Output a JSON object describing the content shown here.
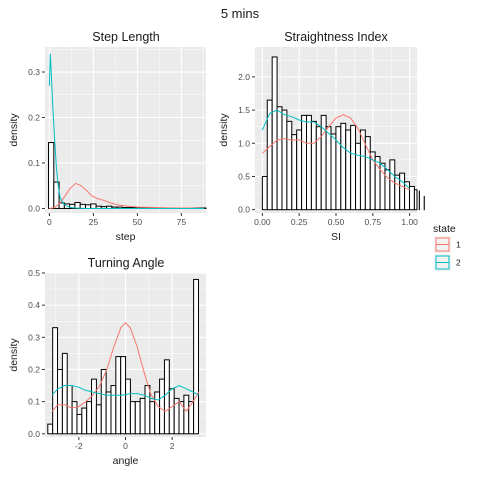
{
  "figure": {
    "title": "5 mins"
  },
  "legend": {
    "title": "state",
    "position": "right",
    "entries": [
      {
        "label": "1",
        "color": "#F8766D"
      },
      {
        "label": "2",
        "color": "#00BFC4"
      }
    ]
  },
  "chart_data": [
    {
      "type": "histogram-density",
      "title": "Step Length",
      "xlabel": "step",
      "ylabel": "density",
      "xlim": [
        -2.5,
        89
      ],
      "ylim": [
        -0.01,
        0.355
      ],
      "xticks": [
        0,
        25,
        50,
        75
      ],
      "yticks": [
        0.0,
        0.1,
        0.2,
        0.3
      ],
      "grid": true,
      "hist": {
        "start": -0.5,
        "width": 3,
        "values": [
          0.145,
          0.058,
          0.012,
          0.01,
          0.009,
          0.013,
          0.009,
          0.008,
          0.01,
          0.005,
          0.004,
          0.005,
          0.003,
          0.003,
          0.002,
          0.002,
          0.002,
          0.002,
          0.001,
          0.001,
          0.001,
          0.001,
          0.001,
          0.001,
          0.001,
          0.001,
          0.001,
          0.001,
          0.001,
          0.001
        ]
      },
      "series": [
        {
          "name": "1",
          "color": "#F8766D",
          "x": [
            0,
            3,
            6,
            9,
            12,
            15,
            18,
            21,
            24,
            27,
            30,
            35,
            40,
            50,
            60,
            70,
            80,
            88
          ],
          "y": [
            0.0,
            0.002,
            0.012,
            0.028,
            0.045,
            0.055,
            0.05,
            0.04,
            0.028,
            0.022,
            0.019,
            0.012,
            0.007,
            0.003,
            0.002,
            0.001,
            0.001,
            0.0
          ]
        },
        {
          "name": "2",
          "color": "#00BFC4",
          "x": [
            0,
            0.5,
            1,
            2,
            3,
            4,
            5,
            6,
            8,
            10,
            12,
            15,
            20,
            30,
            50,
            88
          ],
          "y": [
            0.27,
            0.34,
            0.3,
            0.22,
            0.15,
            0.09,
            0.05,
            0.025,
            0.01,
            0.005,
            0.002,
            0.001,
            0.0,
            0.0,
            0.0,
            0.0
          ]
        }
      ]
    },
    {
      "type": "histogram-density",
      "title": "Straightness Index",
      "xlabel": "SI",
      "ylabel": "density",
      "xlim": [
        -0.05,
        1.05
      ],
      "ylim": [
        -0.05,
        2.45
      ],
      "xticks": [
        0.0,
        0.25,
        0.5,
        0.75,
        1.0
      ],
      "xtick_labels": [
        "0.00",
        "0.25",
        "0.50",
        "0.75",
        "1.00"
      ],
      "yticks": [
        0.0,
        0.5,
        1.0,
        1.5,
        2.0
      ],
      "grid": true,
      "hist": {
        "start": 0.0,
        "width": 0.0333,
        "values": [
          0.5,
          1.65,
          2.3,
          1.55,
          1.5,
          1.33,
          1.13,
          1.2,
          1.42,
          1.42,
          1.33,
          1.25,
          1.42,
          1.25,
          1.14,
          1.25,
          1.3,
          1.2,
          1.27,
          1.0,
          1.2,
          1.1,
          0.87,
          0.8,
          0.7,
          0.6,
          0.75,
          0.52,
          0.55,
          0.42,
          0.35,
          0.3,
          0.28,
          0.2
        ]
      },
      "series": [
        {
          "name": "1",
          "color": "#F8766D",
          "x": [
            0.0,
            0.05,
            0.1,
            0.15,
            0.2,
            0.25,
            0.3,
            0.35,
            0.4,
            0.45,
            0.5,
            0.55,
            0.6,
            0.65,
            0.7,
            0.75,
            0.8,
            0.85,
            0.9,
            0.95,
            1.0
          ],
          "y": [
            0.85,
            0.95,
            1.05,
            1.07,
            1.05,
            1.05,
            1.0,
            1.0,
            1.1,
            1.25,
            1.38,
            1.43,
            1.38,
            1.22,
            0.98,
            0.75,
            0.6,
            0.48,
            0.4,
            0.35,
            0.3
          ]
        },
        {
          "name": "2",
          "color": "#00BFC4",
          "x": [
            0.0,
            0.05,
            0.1,
            0.15,
            0.2,
            0.25,
            0.3,
            0.35,
            0.4,
            0.45,
            0.5,
            0.55,
            0.6,
            0.65,
            0.7,
            0.75,
            0.8,
            0.85,
            0.9,
            0.95,
            1.0
          ],
          "y": [
            1.2,
            1.45,
            1.5,
            1.43,
            1.4,
            1.35,
            1.32,
            1.32,
            1.25,
            1.15,
            1.05,
            0.93,
            0.85,
            0.82,
            0.8,
            0.75,
            0.7,
            0.6,
            0.5,
            0.42,
            0.32
          ]
        }
      ]
    },
    {
      "type": "histogram-density",
      "title": "Turning Angle",
      "xlabel": "angle",
      "ylabel": "density",
      "xlim": [
        -3.45,
        3.45
      ],
      "ylim": [
        -0.01,
        0.5
      ],
      "xticks": [
        -2,
        0,
        2
      ],
      "yticks": [
        0.0,
        0.1,
        0.2,
        0.3,
        0.4,
        0.5
      ],
      "grid": true,
      "hist": {
        "start": -3.33,
        "width": 0.2083,
        "values": [
          0.03,
          0.33,
          0.2,
          0.25,
          0.15,
          0.1,
          0.06,
          0.08,
          0.1,
          0.17,
          0.09,
          0.2,
          0.13,
          0.15,
          0.24,
          0.24,
          0.17,
          0.1,
          0.1,
          0.11,
          0.15,
          0.1,
          0.13,
          0.17,
          0.23,
          0.14,
          0.11,
          0.1,
          0.12,
          0.1,
          0.48
        ]
      },
      "series": [
        {
          "name": "1",
          "color": "#F8766D",
          "x": [
            -3.14,
            -2.9,
            -2.6,
            -2.3,
            -2.0,
            -1.7,
            -1.4,
            -1.1,
            -0.8,
            -0.5,
            -0.2,
            0.0,
            0.2,
            0.5,
            0.8,
            1.1,
            1.4,
            1.7,
            2.0,
            2.3,
            2.6,
            2.9,
            3.14
          ],
          "y": [
            0.07,
            0.09,
            0.09,
            0.08,
            0.085,
            0.1,
            0.12,
            0.15,
            0.2,
            0.27,
            0.33,
            0.345,
            0.33,
            0.27,
            0.19,
            0.12,
            0.085,
            0.07,
            0.085,
            0.1,
            0.07,
            0.1,
            0.13
          ]
        },
        {
          "name": "2",
          "color": "#00BFC4",
          "x": [
            -3.14,
            -2.9,
            -2.6,
            -2.3,
            -2.0,
            -1.7,
            -1.4,
            -1.1,
            -0.8,
            -0.5,
            -0.2,
            0.0,
            0.2,
            0.5,
            0.8,
            1.1,
            1.4,
            1.7,
            2.0,
            2.3,
            2.6,
            2.9,
            3.14
          ],
          "y": [
            0.12,
            0.14,
            0.15,
            0.15,
            0.145,
            0.135,
            0.13,
            0.125,
            0.12,
            0.12,
            0.12,
            0.122,
            0.125,
            0.125,
            0.12,
            0.11,
            0.105,
            0.12,
            0.14,
            0.15,
            0.14,
            0.13,
            0.12
          ]
        }
      ]
    }
  ]
}
